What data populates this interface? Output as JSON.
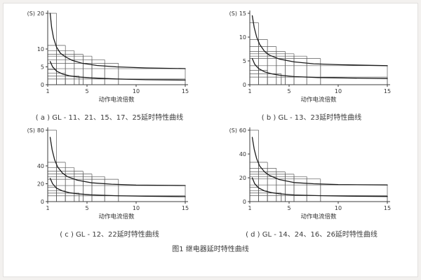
{
  "page": {
    "figure_caption": "图1  继电器延时特性曲线"
  },
  "chart_data": [
    {
      "id": "a",
      "type": "line",
      "caption": "( a ) GL - 11、21、15、17、25延时特性曲线",
      "xlabel": "动作电流倍数",
      "ylabel": "(S)",
      "xlim": [
        1,
        15
      ],
      "ylim": [
        0,
        20
      ],
      "xticks": [
        1,
        5,
        10,
        15
      ],
      "yticks": [
        0,
        5,
        10,
        20
      ],
      "grid": false,
      "legend": "none",
      "step_envelopes": [
        [
          [
            1,
            1.9,
            20
          ],
          [
            1.9,
            2.8,
            11
          ],
          [
            2.8,
            3.7,
            9.5
          ],
          [
            3.7,
            4.6,
            8.5
          ],
          [
            4.6,
            5.5,
            8
          ],
          [
            5.5,
            6.8,
            7
          ],
          [
            6.8,
            8.2,
            6
          ],
          [
            8.2,
            15,
            4.5
          ]
        ],
        [
          [
            1,
            1.9,
            4.2
          ],
          [
            1.9,
            2.8,
            3.2
          ],
          [
            2.8,
            4.2,
            2.4
          ],
          [
            4.2,
            15,
            1.6
          ]
        ]
      ],
      "curves": [
        {
          "name": "upper-limit-curve",
          "points": [
            [
              1.25,
              20
            ],
            [
              1.4,
              16
            ],
            [
              1.6,
              13
            ],
            [
              1.9,
              10.5
            ],
            [
              2.3,
              8.8
            ],
            [
              2.8,
              7.8
            ],
            [
              3.5,
              6.8
            ],
            [
              4.5,
              6
            ],
            [
              6,
              5.4
            ],
            [
              8,
              5
            ],
            [
              11,
              4.7
            ],
            [
              15,
              4.5
            ]
          ]
        },
        {
          "name": "lower-limit-curve",
          "points": [
            [
              1.25,
              6.5
            ],
            [
              1.5,
              5
            ],
            [
              1.9,
              3.8
            ],
            [
              2.5,
              3
            ],
            [
              3.2,
              2.5
            ],
            [
              4,
              2.2
            ],
            [
              5.5,
              1.9
            ],
            [
              8,
              1.6
            ],
            [
              11,
              1.4
            ],
            [
              15,
              1.3
            ]
          ]
        }
      ]
    },
    {
      "id": "b",
      "type": "line",
      "caption": "( b ) GL - 13、23延时特性曲线",
      "xlabel": "动作电流倍数",
      "ylabel": "(S)",
      "xlim": [
        1,
        15
      ],
      "ylim": [
        0,
        15
      ],
      "xticks": [
        1,
        5,
        10,
        15
      ],
      "yticks": [
        0,
        5,
        10,
        15
      ],
      "grid": false,
      "legend": "none",
      "step_envelopes": [
        [
          [
            1,
            1.9,
            13
          ],
          [
            1.9,
            2.8,
            9.5
          ],
          [
            2.8,
            3.7,
            8
          ],
          [
            3.7,
            4.6,
            7
          ],
          [
            4.6,
            5.5,
            6.5
          ],
          [
            5.5,
            6.8,
            6
          ],
          [
            6.8,
            8.2,
            5.5
          ],
          [
            8.2,
            15,
            4
          ]
        ],
        [
          [
            1,
            1.9,
            4
          ],
          [
            1.9,
            2.8,
            3
          ],
          [
            2.8,
            4.2,
            2.3
          ],
          [
            4.2,
            15,
            1.6
          ]
        ]
      ],
      "curves": [
        {
          "name": "upper-limit-curve",
          "points": [
            [
              1.25,
              14.5
            ],
            [
              1.45,
              12
            ],
            [
              1.7,
              10
            ],
            [
              2,
              8.5
            ],
            [
              2.5,
              7
            ],
            [
              3,
              6.2
            ],
            [
              4,
              5.4
            ],
            [
              5.5,
              4.8
            ],
            [
              7.5,
              4.4
            ],
            [
              10,
              4.2
            ],
            [
              15,
              4
            ]
          ]
        },
        {
          "name": "lower-limit-curve",
          "points": [
            [
              1.25,
              5.5
            ],
            [
              1.5,
              4.3
            ],
            [
              1.9,
              3.4
            ],
            [
              2.5,
              2.7
            ],
            [
              3.2,
              2.3
            ],
            [
              4,
              2
            ],
            [
              5.5,
              1.7
            ],
            [
              8,
              1.5
            ],
            [
              11,
              1.4
            ],
            [
              15,
              1.3
            ]
          ]
        }
      ]
    },
    {
      "id": "c",
      "type": "line",
      "caption": "( c ) GL - 12、22延时特性曲线",
      "xlabel": "动作电流倍数",
      "ylabel": "(S)",
      "xlim": [
        1,
        15
      ],
      "ylim": [
        0,
        80
      ],
      "xticks": [
        1,
        5,
        10,
        15
      ],
      "yticks": [
        0,
        20,
        40,
        80
      ],
      "grid": false,
      "legend": "none",
      "step_envelopes": [
        [
          [
            1,
            1.9,
            80
          ],
          [
            1.9,
            2.8,
            44
          ],
          [
            2.8,
            3.7,
            38
          ],
          [
            3.7,
            4.6,
            34
          ],
          [
            4.6,
            5.5,
            31
          ],
          [
            5.5,
            6.8,
            28
          ],
          [
            6.8,
            8.2,
            25
          ],
          [
            8.2,
            15,
            18
          ]
        ],
        [
          [
            1,
            1.9,
            16
          ],
          [
            1.9,
            2.8,
            12
          ],
          [
            2.8,
            4.2,
            9.5
          ],
          [
            4.2,
            15,
            6.5
          ]
        ]
      ],
      "curves": [
        {
          "name": "upper-limit-curve",
          "points": [
            [
              1.25,
              72
            ],
            [
              1.45,
              58
            ],
            [
              1.7,
              47
            ],
            [
              2,
              39
            ],
            [
              2.5,
              32
            ],
            [
              3,
              28
            ],
            [
              4,
              24
            ],
            [
              5.5,
              21
            ],
            [
              7.5,
              19.5
            ],
            [
              10,
              18.5
            ],
            [
              15,
              18
            ]
          ]
        },
        {
          "name": "lower-limit-curve",
          "points": [
            [
              1.25,
              26
            ],
            [
              1.5,
              20
            ],
            [
              1.9,
              15
            ],
            [
              2.5,
              12
            ],
            [
              3.2,
              10
            ],
            [
              4,
              8.8
            ],
            [
              5.5,
              7.5
            ],
            [
              8,
              6.6
            ],
            [
              11,
              6
            ],
            [
              15,
              5.6
            ]
          ]
        }
      ]
    },
    {
      "id": "d",
      "type": "line",
      "caption": "( d ) GL - 14、24、16、26延时特性曲线",
      "xlabel": "动作电流倍数",
      "ylabel": "(S)",
      "xlim": [
        1,
        15
      ],
      "ylim": [
        0,
        60
      ],
      "xticks": [
        1,
        5,
        10,
        15
      ],
      "yticks": [
        0,
        20,
        40,
        60
      ],
      "grid": false,
      "legend": "none",
      "step_envelopes": [
        [
          [
            1,
            1.9,
            60
          ],
          [
            1.9,
            2.8,
            33
          ],
          [
            2.8,
            3.7,
            28
          ],
          [
            3.7,
            4.6,
            25
          ],
          [
            4.6,
            5.5,
            23
          ],
          [
            5.5,
            6.8,
            21
          ],
          [
            6.8,
            8.2,
            19
          ],
          [
            8.2,
            15,
            14
          ]
        ],
        [
          [
            1,
            1.9,
            12
          ],
          [
            1.9,
            2.8,
            9
          ],
          [
            2.8,
            4.2,
            7.2
          ],
          [
            4.2,
            15,
            5
          ]
        ]
      ],
      "curves": [
        {
          "name": "upper-limit-curve",
          "points": [
            [
              1.25,
              54
            ],
            [
              1.45,
              44
            ],
            [
              1.7,
              36
            ],
            [
              2,
              30
            ],
            [
              2.5,
              25
            ],
            [
              3,
              22
            ],
            [
              4,
              18.5
            ],
            [
              5.5,
              16
            ],
            [
              7.5,
              15
            ],
            [
              10,
              14.3
            ],
            [
              15,
              14
            ]
          ]
        },
        {
          "name": "lower-limit-curve",
          "points": [
            [
              1.25,
              20
            ],
            [
              1.5,
              15
            ],
            [
              1.9,
              11.5
            ],
            [
              2.5,
              9
            ],
            [
              3.2,
              7.6
            ],
            [
              4,
              6.6
            ],
            [
              5.5,
              5.6
            ],
            [
              8,
              5
            ],
            [
              11,
              4.6
            ],
            [
              15,
              4.3
            ]
          ]
        }
      ]
    }
  ]
}
